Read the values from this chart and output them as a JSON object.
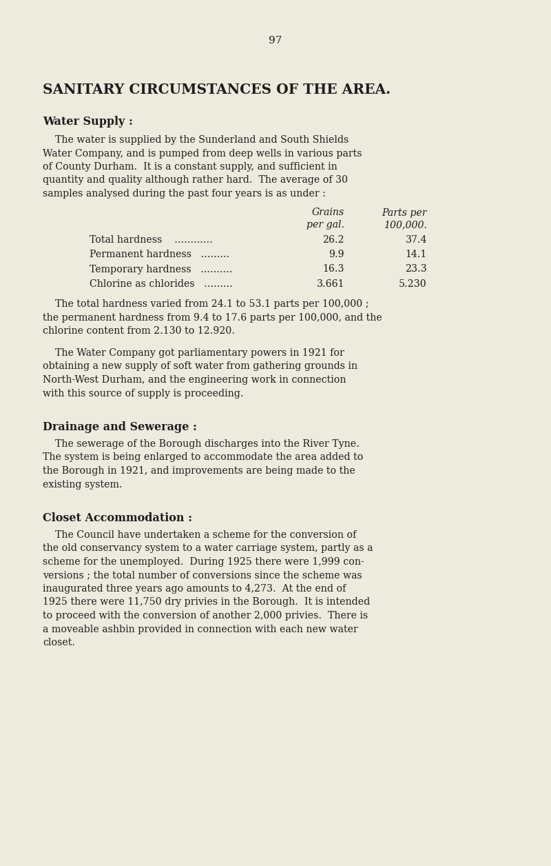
{
  "background_color": "#edeade",
  "page_number": "97",
  "main_title": "SANITARY CIRCUMSTANCES OF THE AREA.",
  "section1_heading": "Water Supply :",
  "section1_para1_lines": [
    "    The water is supplied by the Sunderland and South Shields",
    "Water Company, and is pumped from deep wells in various parts",
    "of County Durham.  It is a constant supply, and sufficient in",
    "quantity and quality although rather hard.  The average of 30",
    "samples analysed during the past four years is as under :"
  ],
  "table_grains_header": "Grains",
  "table_pergal_header": "per gal.",
  "table_partsper_header": "Parts per",
  "table_100000_header": "100,000.",
  "table_rows": [
    [
      "Total hardness                ",
      "26.2",
      "37.4"
    ],
    [
      "Permanent hardness          ",
      "9.9",
      "14.1"
    ],
    [
      "Temporary hardness          ",
      "16.3",
      "23.3"
    ],
    [
      "Chlorine as chlorides          ",
      "3.661",
      "5.230"
    ]
  ],
  "table_row_labels": [
    "Total hardness   ............",
    "Permanent hardness   .........",
    "Temporary hardness   .........",
    "Chlorine as chlorides   ........."
  ],
  "section1_para2_lines": [
    "    The total hardness varied from 24.1 to 53.1 parts per 100,000 ;",
    "the permanent hardness from 9.4 to 17.6 parts per 100,000, and the",
    "chlorine content from 2.130 to 12.920."
  ],
  "section1_para3_lines": [
    "    The Water Company got parliamentary powers in 1921 for",
    "obtaining a new supply of soft water from gathering grounds in",
    "North-West Durham, and the engineering work in connection",
    "with this source of supply is proceeding."
  ],
  "section2_heading": "Drainage and Sewerage :",
  "section2_para1_lines": [
    "    The sewerage of the Borough discharges into the River Tyne.",
    "The system is being enlarged to accommodate the area added to",
    "the Borough in 1921, and improvements are being made to the",
    "existing system."
  ],
  "section3_heading": "Closet Accommodation :",
  "section3_para1_lines": [
    "    The Council have undertaken a scheme for the conversion of",
    "the old conservancy system to a water carriage system, partly as a",
    "scheme for the unemployed.  During 1925 there were 1,999 con-",
    "versions ; the total number of conversions since the scheme was",
    "inaugurated three years ago amounts to 4,273.  At the end of",
    "1925 there were 11,750 dry privies in the Borough.  It is intended",
    "to proceed with the conversion of another 2,000 privies.  There is",
    "a moveable ashbin provided in connection with each new water",
    "closet."
  ],
  "text_color": "#1c1c1c",
  "title_fontsize": 14.5,
  "heading_fontsize": 11.5,
  "body_fontsize": 10.2,
  "page_num_fontsize": 11
}
